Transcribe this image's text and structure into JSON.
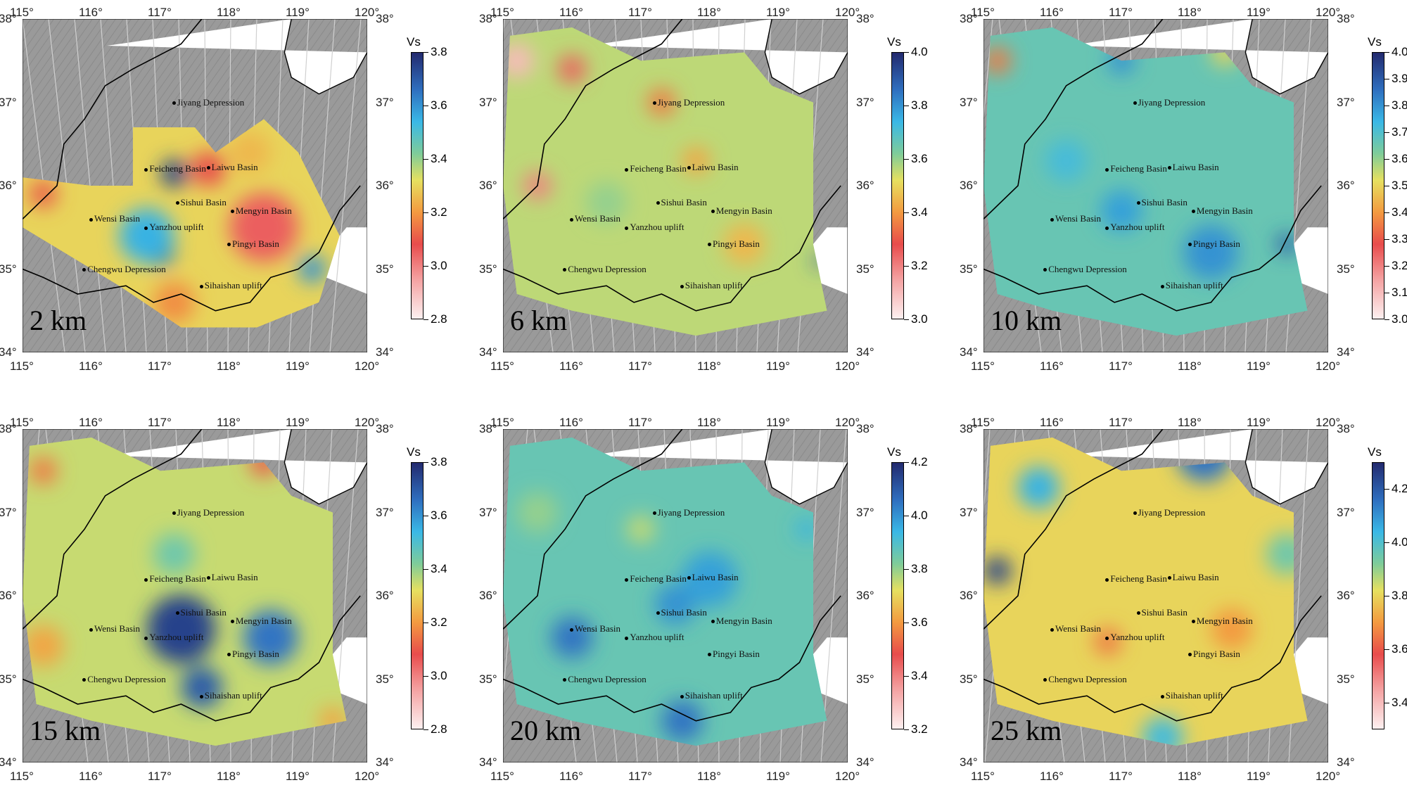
{
  "axes": {
    "lon_ticks": [
      "115°",
      "116°",
      "117°",
      "118°",
      "119°",
      "120°"
    ],
    "lon_values": [
      115,
      116,
      117,
      118,
      119,
      120
    ],
    "lat_ticks": [
      "38°",
      "37°",
      "36°",
      "35°",
      "34°"
    ],
    "lat_values": [
      38,
      37,
      36,
      35,
      34
    ]
  },
  "colorbar_title": "Vs",
  "places": [
    {
      "name": "Jiyang Depression",
      "lon": 117.2,
      "lat": 37.0
    },
    {
      "name": "Feicheng Basin",
      "lon": 116.8,
      "lat": 36.2
    },
    {
      "name": "Laiwu Basin",
      "lon": 117.7,
      "lat": 36.22
    },
    {
      "name": "Sishui Basin",
      "lon": 117.25,
      "lat": 35.8
    },
    {
      "name": "Mengyin Basin",
      "lon": 118.05,
      "lat": 35.7
    },
    {
      "name": "Wensi Basin",
      "lon": 116.0,
      "lat": 35.6
    },
    {
      "name": "Yanzhou uplift",
      "lon": 116.8,
      "lat": 35.5
    },
    {
      "name": "Pingyi Basin",
      "lon": 118.0,
      "lat": 35.3
    },
    {
      "name": "Chengwu Depression",
      "lon": 115.9,
      "lat": 35.0
    },
    {
      "name": "Sihaishan uplift",
      "lon": 117.6,
      "lat": 34.8
    }
  ],
  "panels": [
    {
      "depth": "2 km",
      "cb_range": [
        2.8,
        3.8
      ],
      "cb_ticks": [
        "2.8",
        "3.0",
        "3.2",
        "3.4",
        "3.6",
        "3.8"
      ]
    },
    {
      "depth": "6 km",
      "cb_range": [
        3.0,
        4.0
      ],
      "cb_ticks": [
        "3.0",
        "3.2",
        "3.4",
        "3.6",
        "3.8",
        "4.0"
      ]
    },
    {
      "depth": "10 km",
      "cb_range": [
        3.0,
        4.0
      ],
      "cb_ticks": [
        "3.0",
        "3.1",
        "3.2",
        "3.3",
        "3.4",
        "3.5",
        "3.6",
        "3.7",
        "3.8",
        "3.9",
        "4.0"
      ]
    },
    {
      "depth": "15 km",
      "cb_range": [
        2.8,
        3.8
      ],
      "cb_ticks": [
        "2.8",
        "3.0",
        "3.2",
        "3.4",
        "3.6",
        "3.8"
      ]
    },
    {
      "depth": "20 km",
      "cb_range": [
        3.2,
        4.2
      ],
      "cb_ticks": [
        "3.2",
        "3.4",
        "3.6",
        "3.8",
        "4.0",
        "4.2"
      ]
    },
    {
      "depth": "25 km",
      "cb_range": [
        3.3,
        4.3
      ],
      "cb_ticks": [
        "3.4",
        "3.6",
        "3.8",
        "4.0",
        "4.2"
      ]
    }
  ]
}
